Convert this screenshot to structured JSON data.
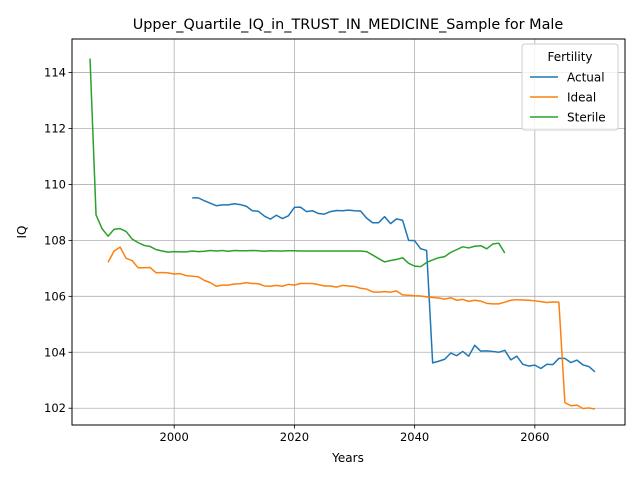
{
  "chart_data": {
    "type": "line",
    "title": "Upper_Quartile_IQ_in_TRUST_IN_MEDICINE_Sample for Male",
    "xlabel": "Years",
    "ylabel": "IQ",
    "xlim": [
      1983,
      2075
    ],
    "ylim": [
      101.4,
      115.2
    ],
    "xticks": [
      2000,
      2020,
      2040,
      2060
    ],
    "yticks": [
      102,
      104,
      106,
      108,
      110,
      112,
      114
    ],
    "grid": true,
    "legend": {
      "title": "Fertility",
      "position": "top-right"
    },
    "series": [
      {
        "name": "Actual",
        "color": "#1f77b4",
        "x": [
          2003,
          2004,
          2005,
          2006,
          2007,
          2008,
          2009,
          2010,
          2011,
          2012,
          2013,
          2014,
          2015,
          2016,
          2017,
          2018,
          2019,
          2020,
          2021,
          2022,
          2023,
          2024,
          2025,
          2026,
          2027,
          2028,
          2029,
          2030,
          2031,
          2032,
          2033,
          2034,
          2035,
          2036,
          2037,
          2038,
          2039,
          2040,
          2041,
          2042,
          2043,
          2044,
          2045,
          2046,
          2047,
          2048,
          2049,
          2050,
          2051,
          2052,
          2053,
          2054,
          2055,
          2056,
          2057,
          2058,
          2059,
          2060,
          2061,
          2062,
          2063,
          2064,
          2065,
          2066,
          2067,
          2068,
          2069,
          2070
        ],
        "y": [
          109.52,
          109.52,
          109.42,
          109.33,
          109.24,
          109.27,
          109.27,
          109.31,
          109.28,
          109.22,
          109.06,
          109.04,
          108.87,
          108.76,
          108.9,
          108.78,
          108.88,
          109.18,
          109.19,
          109.03,
          109.06,
          108.96,
          108.94,
          109.03,
          109.07,
          109.06,
          109.08,
          109.06,
          109.05,
          108.8,
          108.63,
          108.63,
          108.85,
          108.6,
          108.77,
          108.72,
          108.0,
          107.99,
          107.7,
          107.64,
          103.62,
          103.68,
          103.75,
          103.97,
          103.88,
          104.03,
          103.86,
          104.25,
          104.04,
          104.05,
          104.03,
          104.0,
          104.07,
          103.73,
          103.86,
          103.57,
          103.51,
          103.54,
          103.42,
          103.57,
          103.56,
          103.78,
          103.78,
          103.63,
          103.72,
          103.55,
          103.49,
          103.3
        ]
      },
      {
        "name": "Ideal",
        "color": "#ff7f0e",
        "x": [
          1989,
          1990,
          1991,
          1992,
          1993,
          1994,
          1995,
          1996,
          1997,
          1998,
          1999,
          2000,
          2001,
          2002,
          2003,
          2004,
          2005,
          2006,
          2007,
          2008,
          2009,
          2010,
          2011,
          2012,
          2013,
          2014,
          2015,
          2016,
          2017,
          2018,
          2019,
          2020,
          2021,
          2022,
          2023,
          2024,
          2025,
          2026,
          2027,
          2028,
          2029,
          2030,
          2031,
          2032,
          2033,
          2034,
          2035,
          2036,
          2037,
          2038,
          2039,
          2040,
          2041,
          2042,
          2043,
          2044,
          2045,
          2046,
          2047,
          2048,
          2049,
          2050,
          2051,
          2052,
          2053,
          2054,
          2055,
          2056,
          2057,
          2058,
          2059,
          2060,
          2061,
          2062,
          2063,
          2064,
          2065,
          2066,
          2067,
          2068,
          2069,
          2070
        ],
        "y": [
          107.22,
          107.62,
          107.76,
          107.36,
          107.28,
          107.02,
          107.02,
          107.03,
          106.84,
          106.85,
          106.84,
          106.8,
          106.81,
          106.74,
          106.72,
          106.7,
          106.57,
          106.49,
          106.36,
          106.4,
          106.4,
          106.44,
          106.45,
          106.49,
          106.46,
          106.45,
          106.37,
          106.36,
          106.39,
          106.36,
          106.43,
          106.4,
          106.46,
          106.46,
          106.46,
          106.42,
          106.37,
          106.37,
          106.33,
          106.39,
          106.37,
          106.35,
          106.29,
          106.26,
          106.16,
          106.15,
          106.17,
          106.15,
          106.19,
          106.05,
          106.04,
          106.02,
          106.01,
          105.98,
          105.96,
          105.94,
          105.9,
          105.95,
          105.86,
          105.89,
          105.82,
          105.86,
          105.83,
          105.75,
          105.73,
          105.73,
          105.79,
          105.86,
          105.88,
          105.87,
          105.86,
          105.84,
          105.81,
          105.78,
          105.8,
          105.79,
          102.2,
          102.09,
          102.11,
          101.99,
          102.01,
          101.97
        ]
      },
      {
        "name": "Sterile",
        "color": "#2ca02c",
        "x": [
          1986,
          1987,
          1988,
          1989,
          1990,
          1991,
          1992,
          1993,
          1994,
          1995,
          1996,
          1997,
          1998,
          1999,
          2000,
          2001,
          2002,
          2003,
          2004,
          2005,
          2006,
          2007,
          2008,
          2009,
          2010,
          2011,
          2012,
          2013,
          2014,
          2015,
          2016,
          2017,
          2018,
          2019,
          2020,
          2021,
          2022,
          2023,
          2024,
          2025,
          2026,
          2027,
          2028,
          2029,
          2030,
          2031,
          2032,
          2033,
          2034,
          2035,
          2036,
          2037,
          2038,
          2039,
          2040,
          2041,
          2042,
          2043,
          2044,
          2045,
          2046,
          2047,
          2048,
          2049,
          2050,
          2051,
          2052,
          2053,
          2054,
          2055
        ],
        "y": [
          114.5,
          108.91,
          108.42,
          108.15,
          108.4,
          108.42,
          108.32,
          108.05,
          107.92,
          107.82,
          107.78,
          107.67,
          107.62,
          107.58,
          107.6,
          107.59,
          107.59,
          107.62,
          107.6,
          107.61,
          107.64,
          107.62,
          107.64,
          107.61,
          107.64,
          107.63,
          107.63,
          107.64,
          107.63,
          107.61,
          107.63,
          107.62,
          107.62,
          107.63,
          107.63,
          107.62,
          107.62,
          107.62,
          107.62,
          107.62,
          107.62,
          107.62,
          107.62,
          107.62,
          107.62,
          107.62,
          107.6,
          107.48,
          107.35,
          107.23,
          107.28,
          107.32,
          107.38,
          107.18,
          107.08,
          107.06,
          107.21,
          107.3,
          107.38,
          107.42,
          107.57,
          107.67,
          107.77,
          107.73,
          107.79,
          107.81,
          107.7,
          107.87,
          107.9,
          107.55
        ]
      }
    ]
  }
}
